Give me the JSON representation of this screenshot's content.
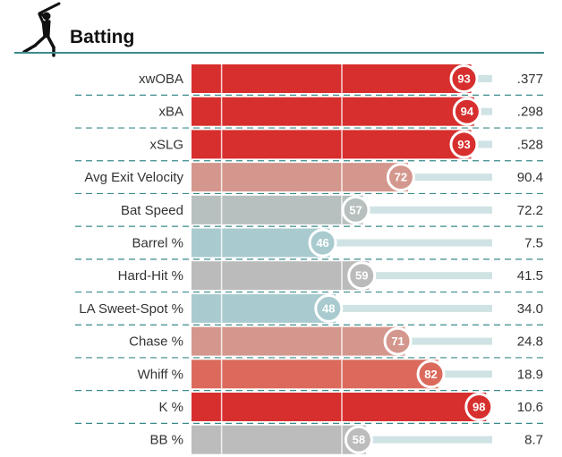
{
  "section": {
    "title": "Batting",
    "icon": "batter-silhouette-icon",
    "header_rule_color": "#3a8a8a"
  },
  "chart_data": {
    "type": "bar",
    "orientation": "horizontal",
    "title": "Batting",
    "value_kind": "percentile",
    "xlim": [
      0,
      100
    ],
    "reference_lines": [
      10,
      50
    ],
    "categories": [
      "xwOBA",
      "xBA",
      "xSLG",
      "Avg Exit Velocity",
      "Bat Speed",
      "Barrel %",
      "Hard-Hit %",
      "LA Sweet-Spot %",
      "Chase %",
      "Whiff %",
      "K %",
      "BB %"
    ],
    "values": [
      93,
      94,
      93,
      72,
      57,
      46,
      59,
      48,
      71,
      82,
      98,
      58
    ],
    "stat_values": [
      ".377",
      ".298",
      ".528",
      "90.4",
      "72.2",
      "7.5",
      "41.5",
      "34.0",
      "24.8",
      "18.9",
      "10.6",
      "8.7"
    ],
    "bar_colors": [
      "#d72f2e",
      "#d72f2e",
      "#d72f2e",
      "#d4978d",
      "#b7c0be",
      "#a9cbcf",
      "#bbbbbb",
      "#a9cbcf",
      "#d4978d",
      "#db6a5c",
      "#d72f2e",
      "#bcbcbc"
    ],
    "colors": {
      "track": "#cfe3e4",
      "row_divider": "#3a8a8a",
      "reference_line": "#ffffff"
    }
  }
}
